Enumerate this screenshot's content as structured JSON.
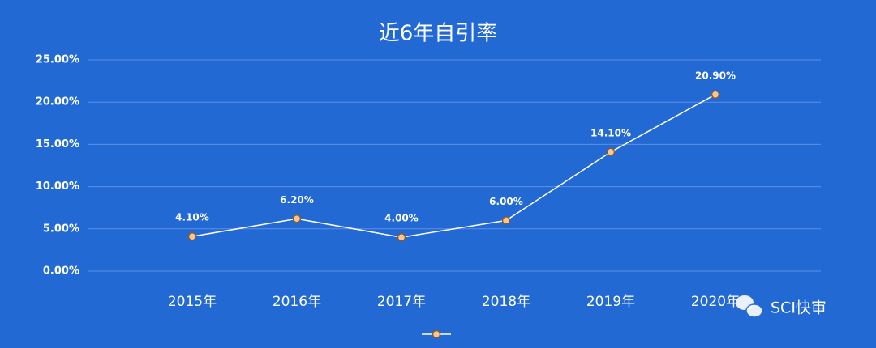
{
  "chart_data": {
    "type": "line",
    "title": "近6年自引率",
    "categories": [
      "2015年",
      "2016年",
      "2017年",
      "2018年",
      "2019年",
      "2020年"
    ],
    "series": [
      {
        "color": "#ffffff",
        "marker_color": "#f7c896",
        "values": [
          4.1,
          6.2,
          4.0,
          6.0,
          14.1,
          20.9
        ],
        "value_labels": [
          "4.10%",
          "6.20%",
          "4.00%",
          "6.00%",
          "14.10%",
          "20.90%"
        ]
      }
    ],
    "ylim": [
      0,
      25
    ],
    "yticks": [
      {
        "value": 0,
        "label": "0.00%"
      },
      {
        "value": 5,
        "label": "5.00%"
      },
      {
        "value": 10,
        "label": "10.00%"
      },
      {
        "value": 15,
        "label": "15.00%"
      },
      {
        "value": 20,
        "label": "20.00%"
      },
      {
        "value": 25,
        "label": "25.00%"
      }
    ],
    "grid": true,
    "watermark": "SCI快审"
  }
}
